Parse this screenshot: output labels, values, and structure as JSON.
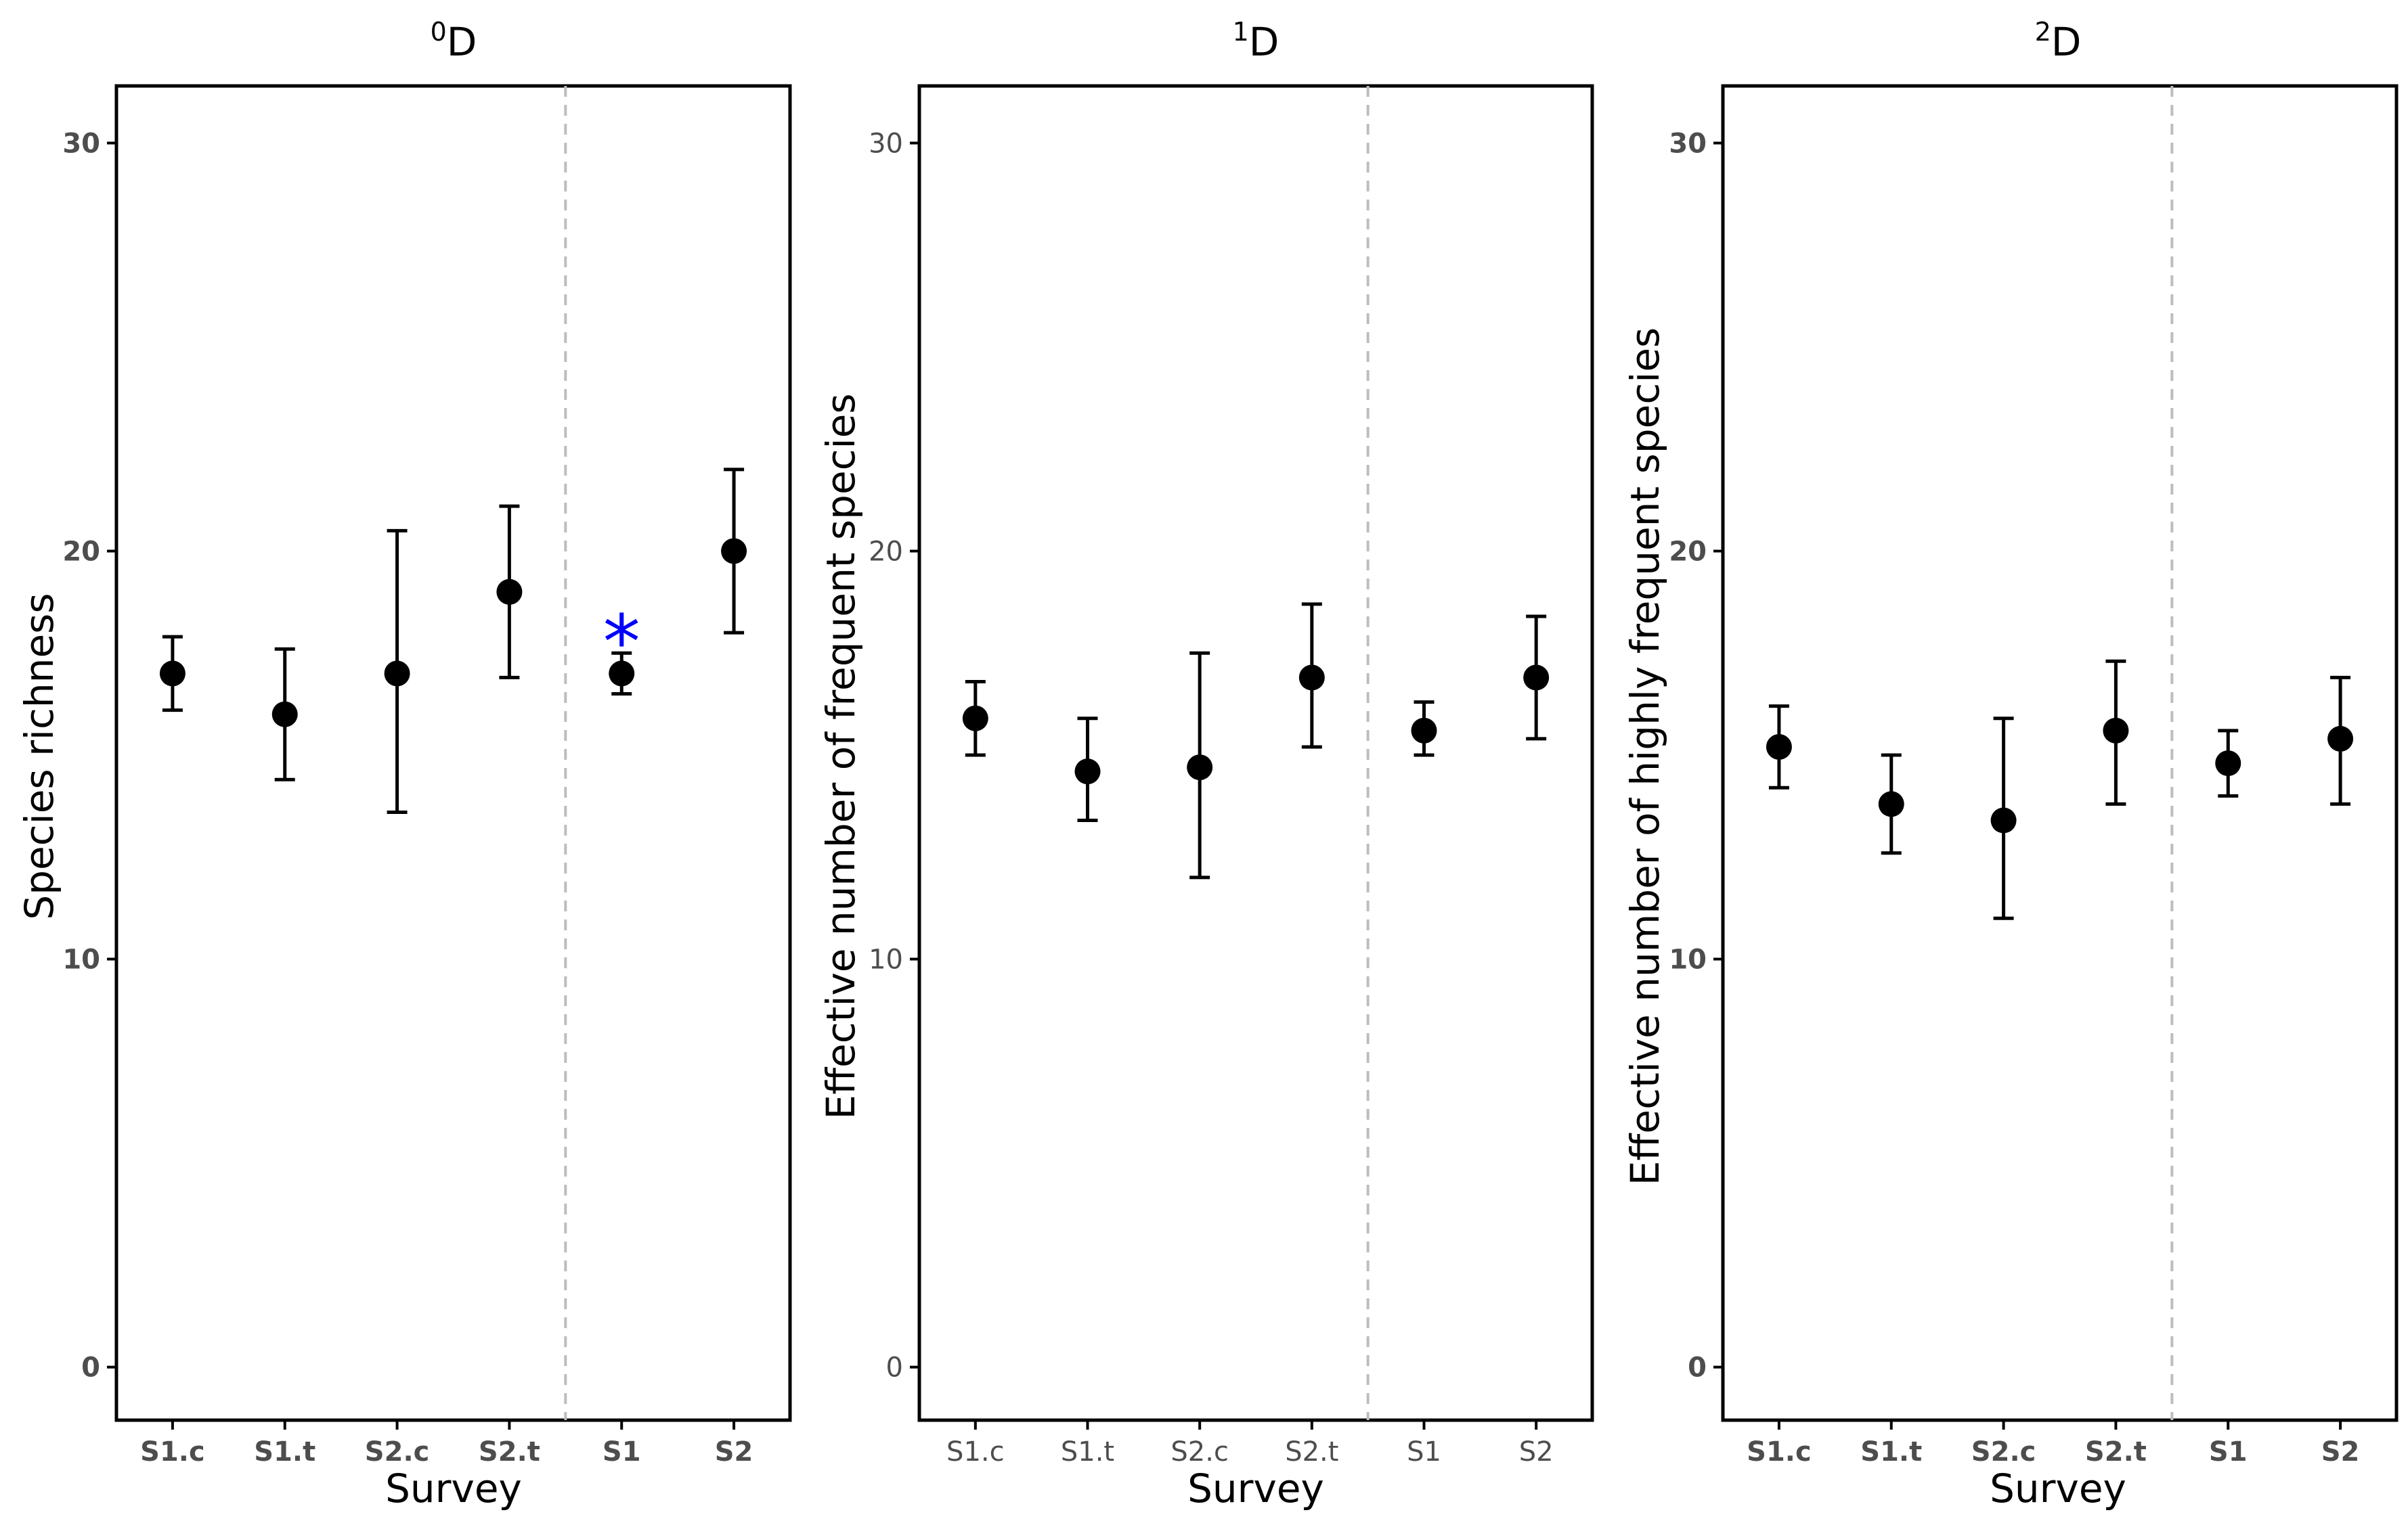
{
  "chart_data": [
    {
      "type": "scatter",
      "title_base": "D",
      "title_sup": "0",
      "ylabel": "Species richness",
      "xlabel": "Survey",
      "ylim": [
        -1.3,
        31.4
      ],
      "yticks": [
        0,
        10,
        20,
        30
      ],
      "categories": [
        "S1.c",
        "S1.t",
        "S2.c",
        "S2.t",
        "S1",
        "S2"
      ],
      "separator_after_index": 3,
      "values": [
        17,
        16,
        17,
        19,
        17,
        20
      ],
      "lower": [
        16.1,
        14.4,
        13.6,
        16.9,
        16.5,
        18
      ],
      "upper": [
        17.9,
        17.6,
        20.5,
        21.1,
        17.5,
        22
      ],
      "annotations": [
        {
          "category": "S1",
          "label": "*",
          "y": 18.1,
          "color": "#0000ff"
        }
      ],
      "light_ticks": false
    },
    {
      "type": "scatter",
      "title_base": "D",
      "title_sup": "1",
      "ylabel": "Effective number of frequent species",
      "xlabel": "Survey",
      "ylim": [
        -1.3,
        31.4
      ],
      "yticks": [
        0,
        10,
        20,
        30
      ],
      "categories": [
        "S1.c",
        "S1.t",
        "S2.c",
        "S2.t",
        "S1",
        "S2"
      ],
      "separator_after_index": 3,
      "values": [
        15.9,
        14.6,
        14.7,
        16.9,
        15.6,
        16.9
      ],
      "lower": [
        15.0,
        13.4,
        12.0,
        15.2,
        15.0,
        15.4
      ],
      "upper": [
        16.8,
        15.9,
        17.5,
        18.7,
        16.3,
        18.4
      ],
      "annotations": [],
      "light_ticks": true
    },
    {
      "type": "scatter",
      "title_base": "D",
      "title_sup": "2",
      "ylabel": "Effective number of highly frequent species",
      "xlabel": "Survey",
      "ylim": [
        -1.3,
        31.4
      ],
      "yticks": [
        0,
        10,
        20,
        30
      ],
      "categories": [
        "S1.c",
        "S1.t",
        "S2.c",
        "S2.t",
        "S1",
        "S2"
      ],
      "separator_after_index": 3,
      "values": [
        15.2,
        13.8,
        13.4,
        15.6,
        14.8,
        15.4
      ],
      "lower": [
        14.2,
        12.6,
        11.0,
        13.8,
        14.0,
        13.8
      ],
      "upper": [
        16.2,
        15.0,
        15.9,
        17.3,
        15.6,
        16.9
      ],
      "annotations": [],
      "light_ticks": false
    }
  ]
}
